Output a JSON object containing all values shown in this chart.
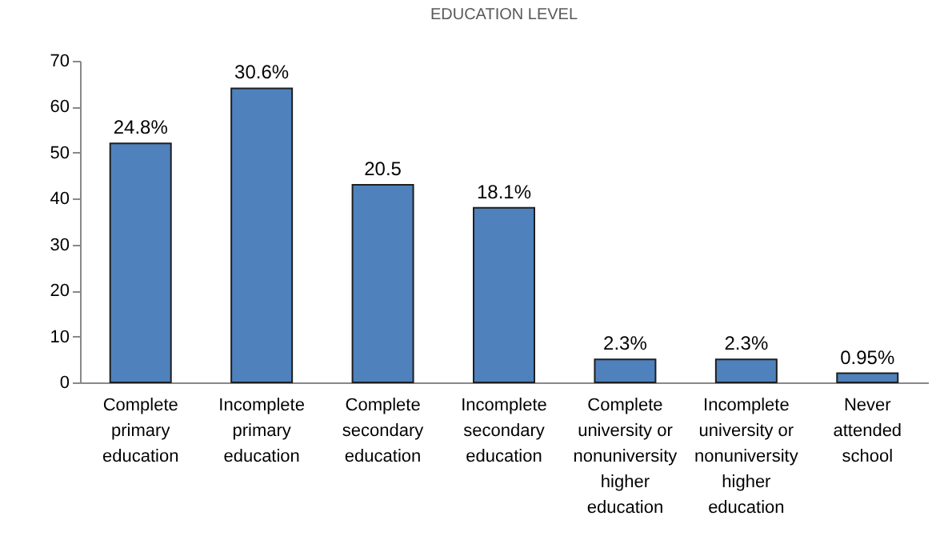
{
  "chart_data": {
    "type": "bar",
    "title": "EDUCATION LEVEL",
    "categories": [
      "Complete primary education",
      "Incomplete primary education",
      "Complete secondary education",
      "Incomplete secondary education",
      "Complete university or nonuniversity higher education",
      "Incomplete university or nonuniversity higher education",
      "Never attended school"
    ],
    "values": [
      52,
      64,
      43,
      38,
      5,
      5,
      2
    ],
    "annotations": [
      {
        "text": "24.8%",
        "x": "Complete primary education",
        "y": 52
      },
      {
        "text": "30.6%",
        "x": "Incomplete primary education",
        "y": 64
      },
      {
        "text": "20.5",
        "x": "Complete secondary education",
        "y": 43
      },
      {
        "text": "18.1%",
        "x": "Incomplete secondary education",
        "y": 38
      },
      {
        "text": "2.3%",
        "x": "Complete university or nonuniversity higher education",
        "y": 5
      },
      {
        "text": "2.3%",
        "x": "Incomplete university or nonuniversity higher education",
        "y": 5
      },
      {
        "text": "0.95%",
        "x": "Never attended school",
        "y": 2
      }
    ],
    "color": "#4f81bd",
    "ylim": [
      0,
      70
    ],
    "yticks": [
      0,
      10,
      20,
      30,
      40,
      50,
      60,
      70
    ],
    "grid": false
  }
}
